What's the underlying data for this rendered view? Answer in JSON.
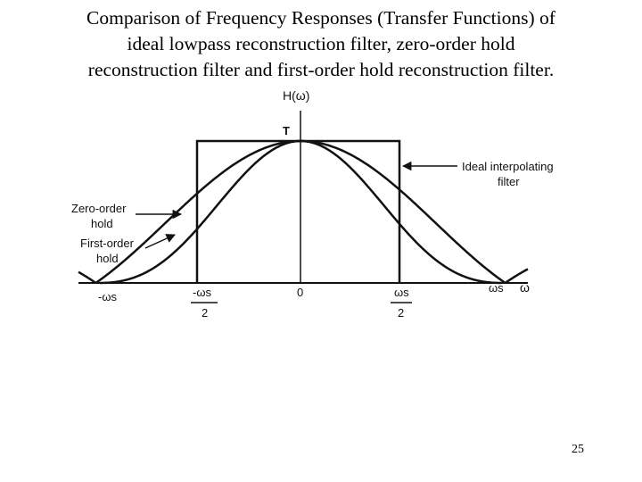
{
  "slide": {
    "title_lines": [
      "Comparison of Frequency Responses (Transfer Functions) of",
      "ideal lowpass reconstruction filter, zero-order hold",
      "reconstruction filter and first-order hold reconstruction filter."
    ],
    "page_number": "25"
  },
  "diagram": {
    "y_axis_label": "H(ω)",
    "peak_label": "T",
    "x_axis_label": "ω",
    "labels": {
      "ideal_line1": "Ideal interpolating",
      "ideal_line2": "filter",
      "zoh_line1": "Zero-order",
      "zoh_line2": "hold",
      "foh_line1": "First-order",
      "foh_line2": "hold"
    },
    "ticks": {
      "neg_ws": "-ωs",
      "neg_ws_half_num": "-ωs",
      "neg_ws_half_den": "2",
      "zero": "0",
      "pos_ws_half_num": "ωs",
      "pos_ws_half_den": "2",
      "pos_ws": "ωs"
    }
  }
}
